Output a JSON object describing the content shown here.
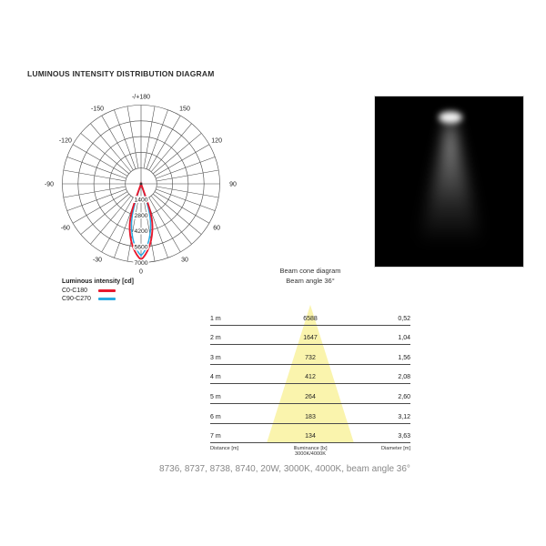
{
  "page": {
    "title": "LUMINOUS INTENSITY DISTRIBUTION DIAGRAM",
    "caption": "8736, 8737, 8738, 8740, 20W, 3000K, 4000K, beam angle 36°"
  },
  "polar": {
    "ring_labels": [
      "1400",
      "2800",
      "4200",
      "5600",
      "7000"
    ],
    "angle_labels": [
      {
        "angle": 180,
        "label": "-/+180"
      },
      {
        "angle": -150,
        "label": "-150"
      },
      {
        "angle": 150,
        "label": "150"
      },
      {
        "angle": -120,
        "label": "-120"
      },
      {
        "angle": 120,
        "label": "120"
      },
      {
        "angle": -90,
        "label": "-90"
      },
      {
        "angle": 90,
        "label": "90"
      },
      {
        "angle": -60,
        "label": "-60"
      },
      {
        "angle": 60,
        "label": "60"
      },
      {
        "angle": -30,
        "label": "-30"
      },
      {
        "angle": 30,
        "label": "30"
      },
      {
        "angle": 0,
        "label": "0"
      }
    ],
    "legend": {
      "title": "Luminous intensity [cd]",
      "series": [
        {
          "label": "C0-C180",
          "color": "#e8192d"
        },
        {
          "label": "C90-C270",
          "color": "#29abe2"
        }
      ]
    }
  },
  "beam_table": {
    "heading1": "Beam cone diagram",
    "heading2": "Beam angle 36°",
    "cone_color": "#faf3a6",
    "rows": [
      {
        "d": "1 m",
        "lx": "6588",
        "dia": "0,52"
      },
      {
        "d": "2 m",
        "lx": "1647",
        "dia": "1,04"
      },
      {
        "d": "3 m",
        "lx": "732",
        "dia": "1,56"
      },
      {
        "d": "4 m",
        "lx": "412",
        "dia": "2,08"
      },
      {
        "d": "5 m",
        "lx": "264",
        "dia": "2,60"
      },
      {
        "d": "6 m",
        "lx": "183",
        "dia": "3,12"
      },
      {
        "d": "7 m",
        "lx": "134",
        "dia": "3,63"
      }
    ],
    "footer": {
      "distance": "Distance [m]",
      "illuminance1": "Illuminance [lx]",
      "illuminance2": "3000K/4000K",
      "diameter": "Diameter [m]"
    }
  },
  "chart_data": [
    {
      "type": "line",
      "subtype": "polar-intensity-distribution",
      "title": "Luminous intensity [cd]",
      "angle_tick_labels": [
        "-/+180",
        "-150",
        "150",
        "-120",
        "120",
        "-90",
        "90",
        "-60",
        "60",
        "-30",
        "30",
        "0"
      ],
      "angle_tick_step_deg": 10,
      "radial_ticks": [
        1400,
        2800,
        4200,
        5600,
        7000
      ],
      "radial_max": 7000,
      "zero_angle_position": "bottom",
      "series": [
        {
          "name": "C0-C180",
          "color": "#e8192d",
          "peak_cd": 6588,
          "beam_angle_deg": 36
        },
        {
          "name": "C90-C270",
          "color": "#29abe2",
          "peak_cd": 6588,
          "beam_angle_deg": 36
        }
      ]
    },
    {
      "type": "table",
      "title": "Beam cone diagram",
      "subtitle": "Beam angle 36°",
      "columns": [
        "Distance [m]",
        "Illuminance [lx] 3000K/4000K",
        "Diameter [m]"
      ],
      "rows": [
        [
          1,
          6588,
          0.52
        ],
        [
          2,
          1647,
          1.04
        ],
        [
          3,
          732,
          1.56
        ],
        [
          4,
          412,
          2.08
        ],
        [
          5,
          264,
          2.6
        ],
        [
          6,
          183,
          3.12
        ],
        [
          7,
          134,
          3.63
        ]
      ]
    }
  ]
}
